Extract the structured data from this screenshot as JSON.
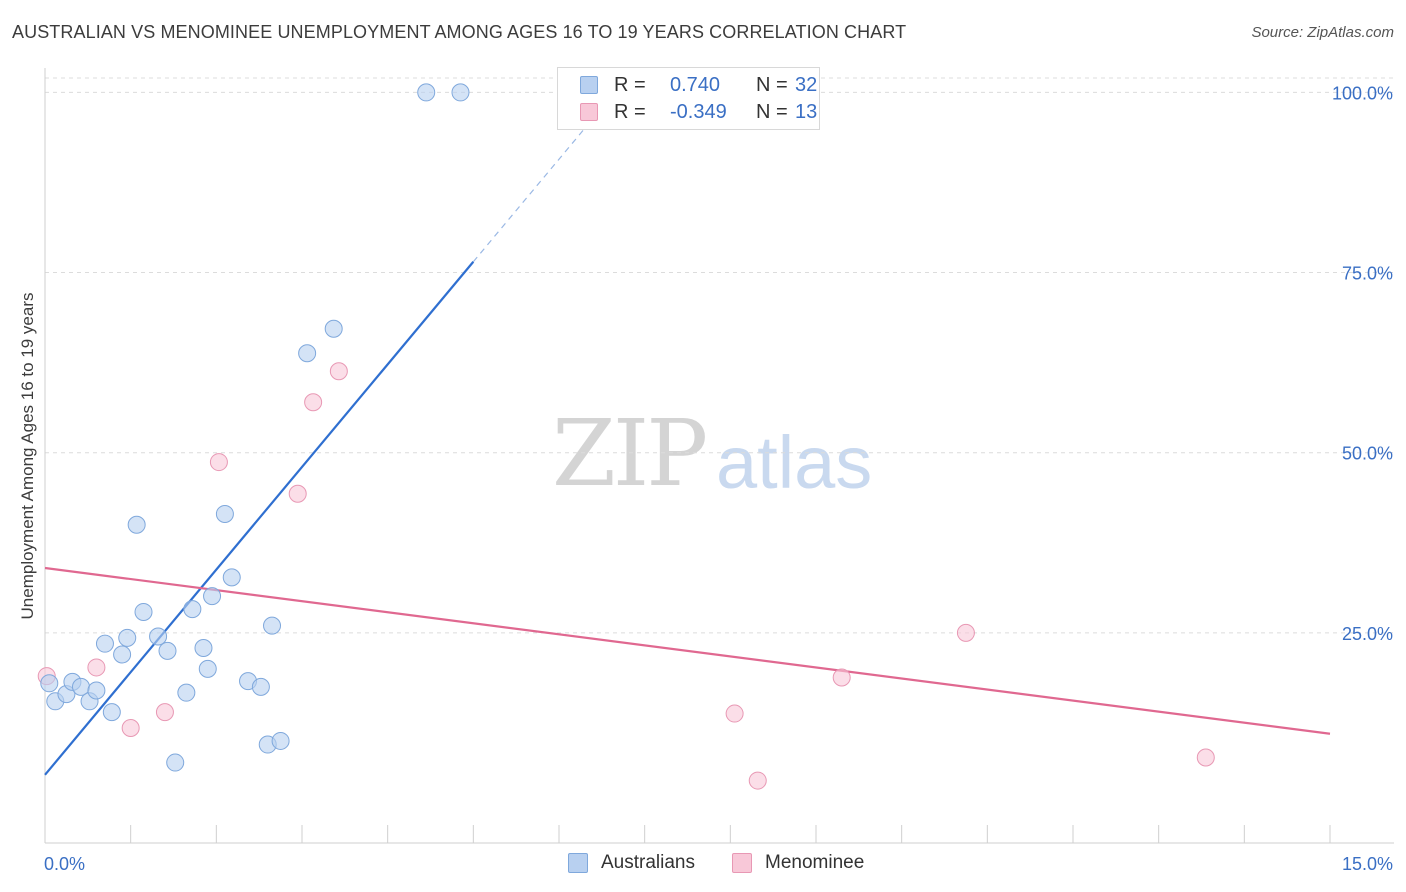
{
  "title": "AUSTRALIAN VS MENOMINEE UNEMPLOYMENT AMONG AGES 16 TO 19 YEARS CORRELATION CHART",
  "source": "Source: ZipAtlas.com",
  "watermark": {
    "zip": "ZIP",
    "atlas": "atlas"
  },
  "legend": {
    "rows": [
      {
        "r_label": "R =",
        "r_value": "0.740",
        "n_label": "N =",
        "n_value": "32"
      },
      {
        "r_label": "R =",
        "r_value": "-0.349",
        "n_label": "N =",
        "n_value": "13"
      }
    ]
  },
  "bottom_legend": {
    "series1": "Australians",
    "series2": "Menominee"
  },
  "colors": {
    "blue_fill": "#b8d0f0",
    "blue_stroke": "#7fa8dc",
    "blue_line": "#2f6fd0",
    "pink_fill": "#f8c8d8",
    "pink_stroke": "#e898b4",
    "pink_line": "#e06890",
    "axis_text": "#3a6fc4",
    "grid": "#dcdcdc"
  },
  "chart_data": {
    "type": "scatter",
    "title": "AUSTRALIAN VS MENOMINEE UNEMPLOYMENT AMONG AGES 16 TO 19 YEARS CORRELATION CHART",
    "xlabel": "",
    "ylabel": "Unemployment Among Ages 16 to 19 years",
    "xlim": [
      0,
      15
    ],
    "ylim": [
      0,
      102
    ],
    "x_tick_labels": [
      "0.0%",
      "15.0%"
    ],
    "y_ticks": [
      25,
      50,
      75,
      100
    ],
    "y_tick_labels": [
      "25.0%",
      "50.0%",
      "75.0%",
      "100.0%"
    ],
    "grid": true,
    "legend_position": "top-center",
    "series": [
      {
        "name": "Australians",
        "r": 0.74,
        "n": 32,
        "points": [
          [
            0.05,
            18.0
          ],
          [
            0.12,
            15.5
          ],
          [
            0.25,
            16.5
          ],
          [
            0.32,
            18.2
          ],
          [
            0.42,
            17.5
          ],
          [
            0.52,
            15.5
          ],
          [
            0.6,
            17.0
          ],
          [
            0.7,
            23.5
          ],
          [
            0.78,
            14.0
          ],
          [
            0.9,
            22.0
          ],
          [
            0.96,
            24.3
          ],
          [
            1.07,
            40.0
          ],
          [
            1.15,
            27.9
          ],
          [
            1.32,
            24.5
          ],
          [
            1.43,
            22.5
          ],
          [
            1.52,
            7.0
          ],
          [
            1.65,
            16.7
          ],
          [
            1.72,
            28.3
          ],
          [
            1.85,
            22.9
          ],
          [
            1.9,
            20.0
          ],
          [
            1.95,
            30.1
          ],
          [
            2.1,
            41.5
          ],
          [
            2.18,
            32.7
          ],
          [
            2.37,
            18.3
          ],
          [
            2.52,
            17.5
          ],
          [
            2.6,
            9.5
          ],
          [
            2.65,
            26.0
          ],
          [
            2.75,
            10.0
          ],
          [
            3.06,
            63.8
          ],
          [
            3.37,
            67.2
          ],
          [
            4.45,
            100.0
          ],
          [
            4.85,
            100.0
          ]
        ],
        "trend": {
          "x": [
            0.0,
            5.0
          ],
          "y": [
            5.3,
            76.5
          ],
          "dashed_extension_to": [
            6.3,
            95.0
          ]
        }
      },
      {
        "name": "Menominee",
        "r": -0.349,
        "n": 13,
        "points": [
          [
            0.02,
            19.0
          ],
          [
            0.6,
            20.2
          ],
          [
            1.0,
            11.8
          ],
          [
            1.4,
            14.0
          ],
          [
            2.03,
            48.7
          ],
          [
            2.95,
            44.3
          ],
          [
            3.13,
            57.0
          ],
          [
            3.43,
            61.3
          ],
          [
            8.05,
            13.8
          ],
          [
            8.32,
            4.5
          ],
          [
            9.3,
            18.8
          ],
          [
            10.75,
            25.0
          ],
          [
            13.55,
            7.7
          ]
        ],
        "trend": {
          "x": [
            0.0,
            15.0
          ],
          "y": [
            34.0,
            11.0
          ]
        }
      }
    ]
  }
}
